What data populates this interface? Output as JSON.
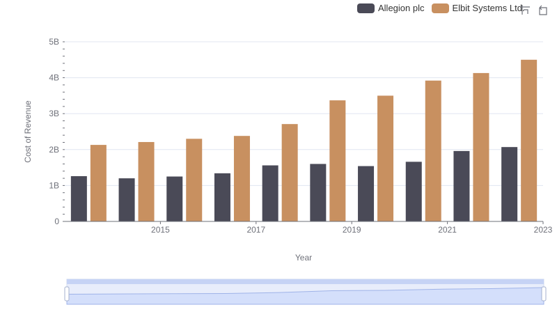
{
  "chart_data": {
    "type": "bar",
    "xlabel": "Year",
    "ylabel": "Cost of Revenue",
    "ylim": [
      0,
      5000000000
    ],
    "y_ticks": [
      "0",
      "1B",
      "2B",
      "3B",
      "4B",
      "5B"
    ],
    "categories": [
      "2014",
      "2015",
      "2016",
      "2017",
      "2018",
      "2019",
      "2020",
      "2021",
      "2022",
      "2023"
    ],
    "x_tick_labels": [
      "2015",
      "2017",
      "2019",
      "2021",
      "2023"
    ],
    "series": [
      {
        "name": "Allegion plc",
        "color": "#4a4a57",
        "values": [
          1260000000,
          1200000000,
          1250000000,
          1340000000,
          1560000000,
          1600000000,
          1540000000,
          1660000000,
          1960000000,
          2070000000
        ]
      },
      {
        "name": "Elbit Systems Ltd.",
        "color": "#c89060",
        "values": [
          2130000000,
          2210000000,
          2300000000,
          2380000000,
          2710000000,
          3370000000,
          3500000000,
          3920000000,
          4130000000,
          4500000000
        ]
      }
    ],
    "legend_position": "top-right",
    "grid": true
  },
  "toolbox": {
    "zoom_icon": "zoom-icon",
    "reset_icon": "restore-icon"
  }
}
